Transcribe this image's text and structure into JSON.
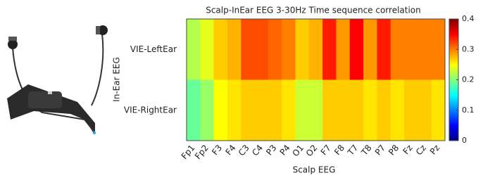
{
  "chart_data": {
    "type": "heatmap",
    "title": "Scalp-InEar EEG 3-30Hz Time sequence correlation",
    "xlabel": "Scalp EEG",
    "ylabel": "In-Ear EEG",
    "categories": [
      "Fp1",
      "Fp2",
      "F3",
      "F4",
      "C3",
      "C4",
      "P3",
      "P4",
      "O1",
      "O2",
      "F7",
      "F8",
      "T7",
      "T8",
      "P7",
      "P8",
      "Fz",
      "Cz",
      "Pz"
    ],
    "rows": [
      "VIE-LeftEar",
      "VIE-RightEar"
    ],
    "values": [
      [
        0.22,
        0.24,
        0.27,
        0.28,
        0.32,
        0.32,
        0.31,
        0.3,
        0.27,
        0.28,
        0.34,
        0.29,
        0.35,
        0.29,
        0.34,
        0.3,
        0.3,
        0.3,
        0.3
      ],
      [
        0.19,
        0.21,
        0.25,
        0.26,
        0.27,
        0.27,
        0.27,
        0.26,
        0.23,
        0.23,
        0.27,
        0.27,
        0.27,
        0.26,
        0.27,
        0.26,
        0.27,
        0.27,
        0.26
      ]
    ],
    "colormap": "jet",
    "clim": [
      0,
      0.4
    ],
    "cticks": [
      0,
      0.1,
      0.2,
      0.3,
      0.4
    ]
  }
}
